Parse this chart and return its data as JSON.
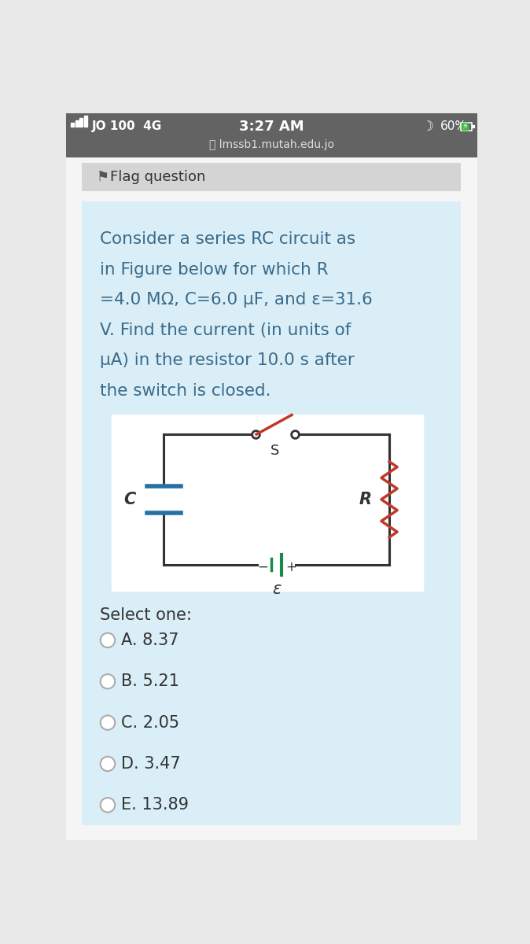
{
  "page_bg": "#e8e8e8",
  "status_bar_bg": "#636363",
  "status_bar_text_color": "#ffffff",
  "status_left": "JO 100  4G",
  "status_center": "3:27 AM",
  "status_url": "lmssb1.mutah.edu.jo",
  "status_battery": "60%",
  "flag_text": "Flag question",
  "flag_bg": "#d4d4d4",
  "outer_bg": "#f5f5f5",
  "card_bg": "#daeef8",
  "question_text_color": "#3a6b8a",
  "circuit_bg": "#ffffff",
  "circuit_border": "#c0c0c0",
  "select_one_text": "Select one:",
  "options": [
    "A. 8.37",
    "B. 5.21",
    "C. 2.05",
    "D. 3.47",
    "E. 13.89"
  ],
  "option_text_color": "#333333",
  "resistor_color": "#c0392b",
  "capacitor_color": "#2471a3",
  "battery_color": "#1a8a4a",
  "wire_color": "#333333",
  "switch_color": "#c0392b",
  "question_lines": [
    "Consider a series RC circuit as",
    "in Figure below for which R",
    "=4.0 MΩ, C=6.0 μF, and ε=31.6",
    "V. Find the current (in units of",
    "μA) in the resistor 10.0 s after",
    "the switch is closed."
  ]
}
